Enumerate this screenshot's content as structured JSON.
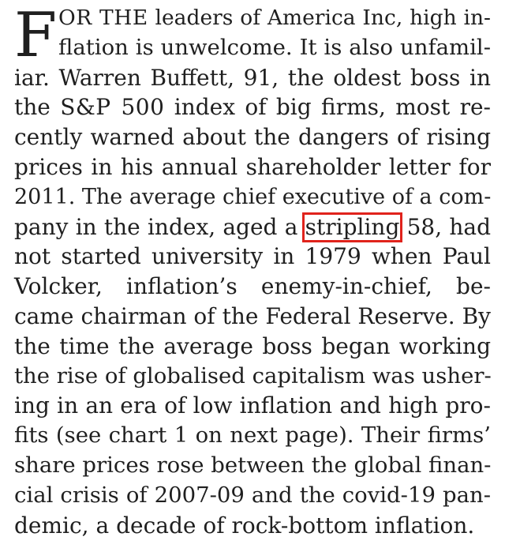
{
  "article": {
    "drop_cap": "F",
    "lines": [
      {
        "lead": "OR THE",
        "rest": " leaders of America Inc, high in-"
      },
      {
        "text": "flation is unwelcome. It is also unfamil-"
      },
      {
        "text": "iar. Warren Buffett, 91, the oldest boss in"
      },
      {
        "pre": "the ",
        "caps": "S&P 500",
        "post": " index of big firms, most re-"
      },
      {
        "text": "cently warned about the dangers of rising"
      },
      {
        "text": "prices in his annual shareholder letter for"
      },
      {
        "text": "2011. The average chief executive of a com-"
      },
      {
        "pre": "pany in the index, aged a ",
        "highlight": "stripling",
        "post": " 58, had"
      },
      {
        "text": "not started university in 1979 when Paul"
      },
      {
        "text": "Volcker, inflation’s enemy-in-chief, be-"
      },
      {
        "text": "came chairman of the Federal Reserve. By"
      },
      {
        "text": "the time the average boss began working"
      },
      {
        "text": "the rise of globalised capitalism was usher-"
      },
      {
        "text": "ing in an era of low inflation and high pro-"
      },
      {
        "text": "fits (see chart 1 on next page). Their firms’"
      },
      {
        "text": "share prices rose between the global finan-"
      },
      {
        "text": "cial crisis of 2007-09 and the covid-19 pan-"
      },
      {
        "text": "demic, a decade of rock-bottom inflation."
      }
    ]
  }
}
